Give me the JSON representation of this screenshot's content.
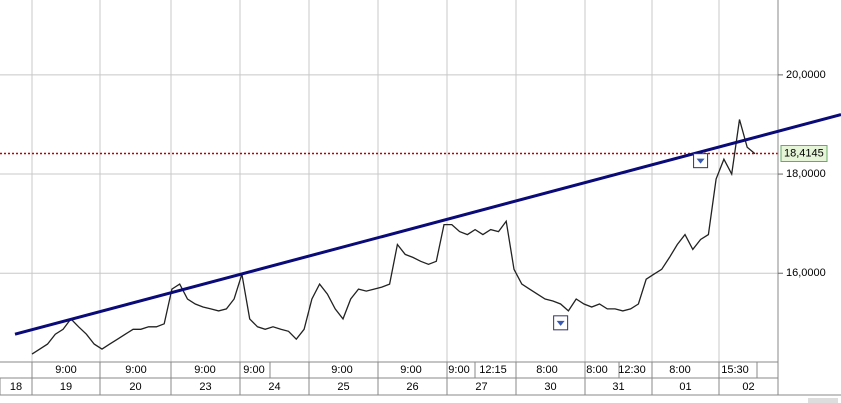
{
  "chart_data": {
    "type": "line",
    "series": [
      {
        "color": "#222222",
        "values": [
          14.37,
          14.47,
          14.57,
          14.77,
          14.87,
          15.08,
          14.92,
          14.77,
          14.57,
          14.47,
          14.57,
          14.67,
          14.77,
          14.87,
          14.87,
          14.92,
          14.92,
          14.98,
          15.68,
          15.78,
          15.48,
          15.38,
          15.32,
          15.28,
          15.24,
          15.28,
          15.48,
          15.98,
          15.08,
          14.92,
          14.87,
          14.92,
          14.87,
          14.83,
          14.67,
          14.87,
          15.48,
          15.78,
          15.58,
          15.28,
          15.08,
          15.48,
          15.68,
          15.64,
          15.68,
          15.72,
          15.78,
          16.58,
          16.38,
          16.32,
          16.24,
          16.18,
          16.24,
          16.98,
          16.98,
          16.84,
          16.78,
          16.88,
          16.78,
          16.88,
          16.84,
          17.05,
          16.08,
          15.78,
          15.68,
          15.58,
          15.48,
          15.44,
          15.38,
          15.24,
          15.48,
          15.38,
          15.32,
          15.38,
          15.28,
          15.28,
          15.24,
          15.28,
          15.38,
          15.88,
          15.98,
          16.08,
          16.32,
          16.58,
          16.78,
          16.48,
          16.68,
          16.78,
          17.9,
          18.3,
          18.0,
          19.1,
          18.54,
          18.41
        ]
      }
    ],
    "ylim": [
      14.21,
      21.51
    ],
    "yticks": [
      {
        "value": 16,
        "label": "16,0000"
      },
      {
        "value": 18,
        "label": "18,0000"
      },
      {
        "value": 20,
        "label": "20,0000"
      }
    ],
    "grid": true,
    "trendline": {
      "color": "#0a0a78",
      "start": 14.77,
      "end": 19.2
    },
    "last_price": {
      "value": 18.4145,
      "label": "18,4145",
      "color": "#c00000"
    },
    "markers": [
      {
        "index": 68,
        "value": 15.0
      },
      {
        "index": 86,
        "value": 18.27
      }
    ],
    "time_labels": [
      "9:00",
      "9:00",
      "9:00",
      "9:00",
      "9:00",
      "9:00",
      "9:00",
      "12:15",
      "8:00",
      "8:00",
      "12:30",
      "8:00",
      "15:30"
    ],
    "day_labels": [
      "18",
      "19",
      "20",
      "23",
      "24",
      "25",
      "26",
      "27",
      "30",
      "31",
      "01",
      "02"
    ]
  }
}
